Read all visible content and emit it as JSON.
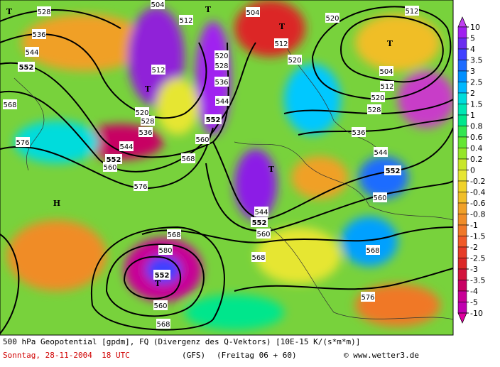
{
  "map": {
    "contour_labels": [
      "528",
      "536",
      "544",
      "552",
      "568",
      "576",
      "512",
      "504",
      "512",
      "520",
      "528",
      "536",
      "544",
      "552",
      "560",
      "520",
      "528",
      "536",
      "544",
      "552",
      "560",
      "568",
      "576",
      "504",
      "512",
      "520",
      "520",
      "512",
      "504",
      "512",
      "520",
      "528",
      "536",
      "544",
      "552",
      "560",
      "568",
      "576",
      "544",
      "552",
      "560",
      "568",
      "568",
      "580",
      "552",
      "560",
      "568"
    ],
    "markers": [
      "T",
      "T",
      "T",
      "T",
      "T",
      "T",
      "T",
      "H"
    ]
  },
  "legend": {
    "labels": [
      10,
      5,
      4,
      3.5,
      3,
      2.5,
      2,
      1.5,
      1,
      0.8,
      0.6,
      0.4,
      0.2,
      0,
      -0.2,
      -0.4,
      -0.6,
      -0.8,
      -1,
      -1.5,
      -2,
      -2.5,
      -3,
      -3.5,
      -4,
      -5,
      -10
    ]
  },
  "footer": {
    "line1": "500 hPa Geopotential [gpdm], FQ (Divergenz des Q-Vektors) [10E-15 K/(s*m*m)]",
    "date": "Sonntag, 28-11-2004  18 UTC",
    "model": "(GFS)",
    "run": "(Freitag 06 + 60)",
    "credit": "© www.wetter3.de"
  }
}
